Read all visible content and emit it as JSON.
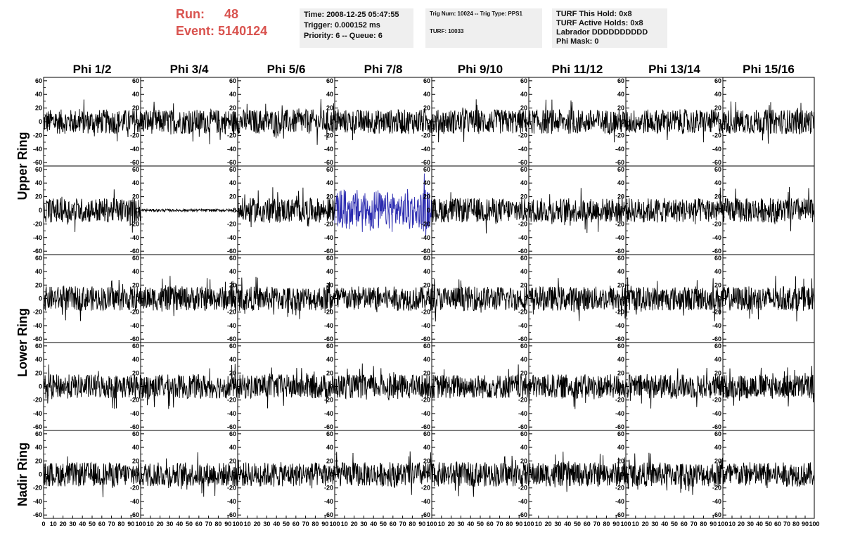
{
  "header": {
    "run_label": "Run:",
    "run_value": "48",
    "event_label": "Event:",
    "event_value": "5140124",
    "run_color": "#d9534f"
  },
  "info_time": {
    "line1": "Time: 2008-12-25 05:47:55",
    "line2": "Trigger: 0.000152 ms",
    "line3": "Priority: 6 -- Queue: 6"
  },
  "info_trig": {
    "line1": "Trig Num: 10024 -- Trig Type: PPS1",
    "line2": "TURF: 10033"
  },
  "info_turf": {
    "line1": "TURF This Hold: 0x8",
    "line2": "TURF Active Holds: 0x8",
    "line3": "Labrador DDDDDDDDDD",
    "line4": "Phi Mask: 0"
  },
  "chart_data": {
    "type": "line",
    "columns": [
      "Phi 1/2",
      "Phi 3/4",
      "Phi 5/6",
      "Phi 7/8",
      "Phi 9/10",
      "Phi 11/12",
      "Phi 13/14",
      "Phi 15/16"
    ],
    "rows": [
      "Upper Ring",
      "Lower Ring",
      "Nadir Ring"
    ],
    "panel_rows": 5,
    "xlim": [
      0,
      100
    ],
    "ylim": [
      -65,
      65
    ],
    "y_ticks": [
      -60,
      -40,
      -20,
      0,
      20,
      40,
      60
    ],
    "x_tick_labels_first": [
      "0",
      "10",
      "20",
      "30",
      "40",
      "50",
      "60",
      "70",
      "80",
      "90",
      "100"
    ],
    "x_tick_labels": [
      "10",
      "20",
      "30",
      "40",
      "50",
      "60",
      "70",
      "80",
      "90",
      "100"
    ],
    "trace_color": "#000000",
    "highlight_color": "#2b2bb0",
    "highlight_panel": {
      "row": 1,
      "col": 3
    },
    "quiet_panel": {
      "row": 1,
      "col": 1
    },
    "trace_amplitude": 18,
    "highlight_amplitude": 32,
    "quiet_amplitude": 2
  }
}
